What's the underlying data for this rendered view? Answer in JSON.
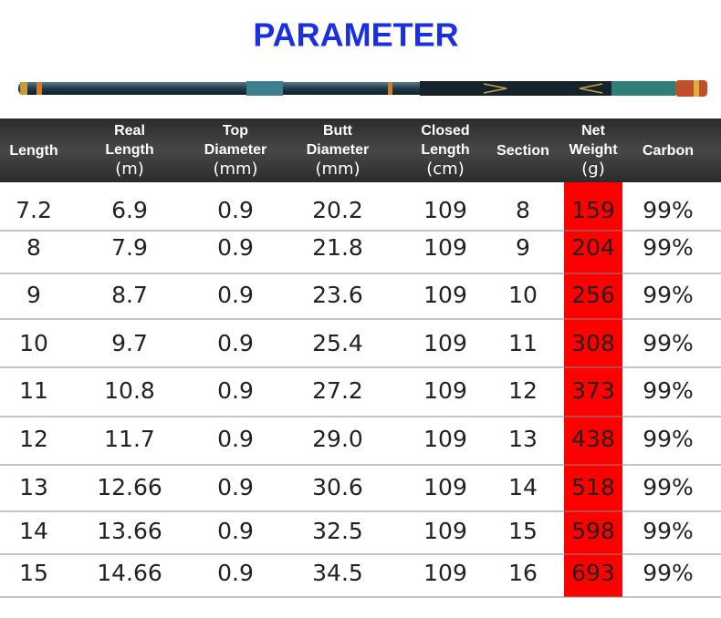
{
  "title": "PARAMETER",
  "table": {
    "header": [
      [
        "Length"
      ],
      [
        "Real",
        "Length",
        "(m)"
      ],
      [
        "Top",
        "Diameter",
        "(mm)"
      ],
      [
        "Butt",
        "Diameter",
        "(mm)"
      ],
      [
        "Closed",
        "Length",
        "(cm)"
      ],
      [
        "Section"
      ],
      [
        "Net",
        "Weight",
        "(g)"
      ],
      [
        "Carbon"
      ]
    ],
    "rows": [
      [
        "7.2",
        "6.9",
        "0.9",
        "20.2",
        "109",
        "8",
        "159",
        "99%"
      ],
      [
        "8",
        "7.9",
        "0.9",
        "21.8",
        "109",
        "9",
        "204",
        "99%"
      ],
      [
        "9",
        "8.7",
        "0.9",
        "23.6",
        "109",
        "10",
        "256",
        "99%"
      ],
      [
        "10",
        "9.7",
        "0.9",
        "25.4",
        "109",
        "11",
        "308",
        "99%"
      ],
      [
        "11",
        "10.8",
        "0.9",
        "27.2",
        "109",
        "12",
        "373",
        "99%"
      ],
      [
        "12",
        "11.7",
        "0.9",
        "29.0",
        "109",
        "13",
        "438",
        "99%"
      ],
      [
        "13",
        "12.66",
        "0.9",
        "30.6",
        "109",
        "14",
        "518",
        "99%"
      ],
      [
        "14",
        "13.66",
        "0.9",
        "32.5",
        "109",
        "15",
        "598",
        "99%"
      ],
      [
        "15",
        "14.66",
        "0.9",
        "34.5",
        "109",
        "16",
        "693",
        "99%"
      ]
    ]
  }
}
